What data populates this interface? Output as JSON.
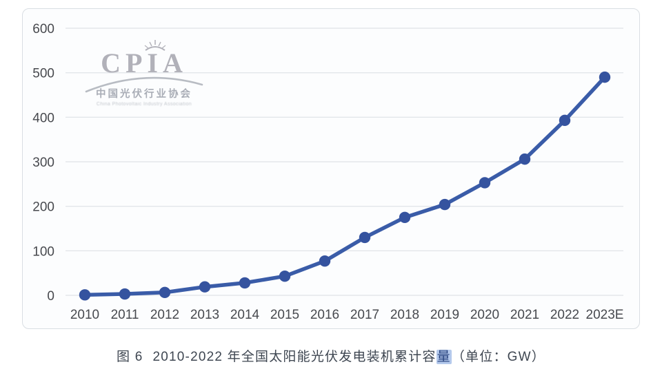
{
  "figure": {
    "caption": {
      "label": "图 6",
      "title": "2010-2022 年全国太阳能光伏发电装机累计容",
      "highlight": "量",
      "unit": "（单位：GW）"
    },
    "logo": {
      "acronym": "CPIA",
      "cn_name": "中国光伏行业协会",
      "en_name": "China Photovoltaic Industry Association"
    }
  },
  "chart_data": {
    "type": "line",
    "title": "2010-2022 年全国太阳能光伏发电装机累计容量",
    "unit": "GW",
    "categories": [
      "2010",
      "2011",
      "2012",
      "2013",
      "2014",
      "2015",
      "2016",
      "2017",
      "2018",
      "2019",
      "2020",
      "2021",
      "2022",
      "2023E"
    ],
    "values": [
      1,
      3,
      6.5,
      19,
      28,
      43,
      77,
      130,
      175,
      204,
      253,
      306,
      393,
      490
    ],
    "xlabel": "",
    "ylabel": "",
    "ylim": [
      0,
      600
    ],
    "yticks": [
      0,
      100,
      200,
      300,
      400,
      500,
      600
    ],
    "grid": true,
    "legend": "none",
    "line_color": "#3a5ca8",
    "marker_color": "#35539f",
    "grid_color": "#e3e6ea",
    "tick_color": "#47494e"
  }
}
